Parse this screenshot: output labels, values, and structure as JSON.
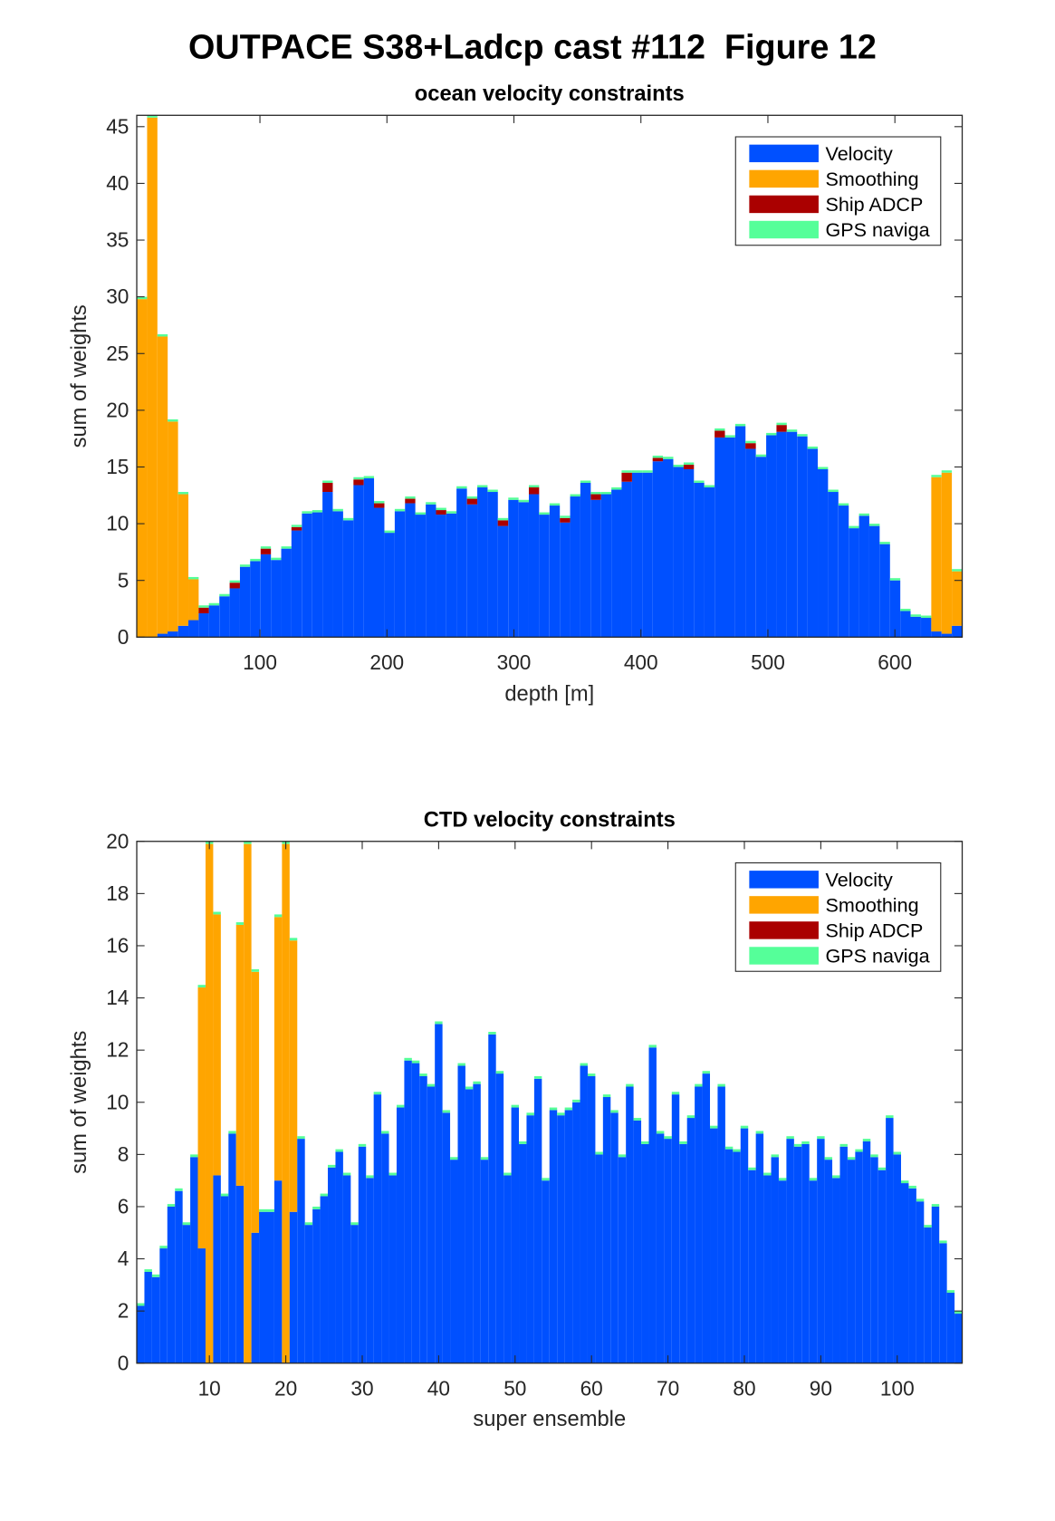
{
  "figure_title": "OUTPACE S38+Ladcp cast #112  Figure 12",
  "chart_data": [
    {
      "type": "bar",
      "stacked": true,
      "title": "ocean velocity constraints",
      "xlabel": "depth [m]",
      "ylabel": "sum of weights",
      "xlim": [
        3,
        653
      ],
      "ylim": [
        0,
        46
      ],
      "xticks": [
        100,
        200,
        300,
        400,
        500,
        600
      ],
      "yticks": [
        0,
        5,
        10,
        15,
        20,
        25,
        30,
        35,
        40,
        45
      ],
      "legend": "upper right",
      "x": [
        7.1,
        15.2,
        23.3,
        31.4,
        39.6,
        47.7,
        55.8,
        63.9,
        72.1,
        80.2,
        88.3,
        96.4,
        104.6,
        112.7,
        120.8,
        128.9,
        137.1,
        145.2,
        153.3,
        161.4,
        169.6,
        177.7,
        185.8,
        193.9,
        202.1,
        210.2,
        218.3,
        226.4,
        234.6,
        242.7,
        250.8,
        258.9,
        267.1,
        275.2,
        283.3,
        291.4,
        299.6,
        307.7,
        315.8,
        323.9,
        332.1,
        340.2,
        348.3,
        356.4,
        364.6,
        372.7,
        380.8,
        388.9,
        397.1,
        405.2,
        413.3,
        421.4,
        429.6,
        437.7,
        445.8,
        453.9,
        462.1,
        470.2,
        478.3,
        486.4,
        494.6,
        502.7,
        510.8,
        518.9,
        527.1,
        535.2,
        543.3,
        551.4,
        559.6,
        567.7,
        575.8,
        583.9,
        592.1,
        600.2,
        608.3,
        616.4,
        624.6,
        632.7,
        640.8,
        648.9
      ],
      "series": [
        {
          "name": "Velocity",
          "color": "#0050ff",
          "values": [
            0,
            0,
            0.3,
            0.5,
            1,
            1.5,
            2.1,
            2.8,
            3.6,
            4.3,
            6.2,
            6.7,
            7.3,
            6.8,
            7.8,
            9.4,
            10.9,
            11.0,
            12.8,
            11.1,
            10.3,
            13.4,
            14.0,
            11.4,
            9.2,
            11.1,
            11.8,
            10.8,
            11.7,
            10.8,
            10.9,
            13.1,
            11.7,
            13.2,
            12.8,
            9.8,
            12.1,
            11.9,
            12.6,
            10.8,
            11.6,
            10.1,
            12.4,
            13.6,
            12.1,
            12.6,
            13.0,
            13.7,
            14.5,
            14.5,
            15.5,
            15.7,
            15.0,
            14.8,
            13.6,
            13.2,
            17.6,
            17.6,
            18.6,
            16.6,
            15.9,
            17.8,
            18.1,
            18.1,
            17.7,
            16.6,
            14.8,
            12.8,
            11.6,
            9.6,
            10.7,
            9.8,
            8.2,
            5.0,
            2.3,
            1.8,
            1.7,
            0.5,
            0.3,
            1.0
          ]
        },
        {
          "name": "Smoothing",
          "color": "#ffa500",
          "values": [
            29.8,
            45.8,
            26.2,
            18.5,
            11.6,
            3.6,
            0,
            0,
            0,
            0,
            0,
            0,
            0,
            0,
            0,
            0,
            0,
            0,
            0,
            0,
            0,
            0,
            0,
            0,
            0,
            0,
            0,
            0,
            0,
            0,
            0,
            0,
            0,
            0,
            0,
            0,
            0,
            0,
            0,
            0,
            0,
            0,
            0,
            0,
            0,
            0,
            0,
            0,
            0,
            0,
            0,
            0,
            0,
            0,
            0,
            0,
            0,
            0,
            0,
            0,
            0,
            0,
            0,
            0,
            0,
            0,
            0,
            0,
            0,
            0,
            0,
            0,
            0,
            0,
            0,
            0,
            0,
            13.6,
            14.2,
            4.8
          ]
        },
        {
          "name": "Ship ADCP",
          "color": "#aa0000",
          "values": [
            0,
            0,
            0,
            0,
            0,
            0,
            0.5,
            0,
            0,
            0.5,
            0,
            0,
            0.5,
            0,
            0,
            0.3,
            0,
            0,
            0.8,
            0,
            0,
            0.5,
            0,
            0.4,
            0,
            0,
            0.4,
            0,
            0,
            0.4,
            0,
            0,
            0.5,
            0,
            0,
            0.5,
            0,
            0,
            0.6,
            0,
            0,
            0.4,
            0,
            0,
            0.5,
            0,
            0,
            0.8,
            0,
            0,
            0.3,
            0,
            0,
            0.4,
            0,
            0,
            0.6,
            0,
            0,
            0.5,
            0,
            0,
            0.6,
            0,
            0,
            0,
            0,
            0,
            0,
            0,
            0,
            0,
            0,
            0,
            0,
            0,
            0,
            0,
            0,
            0
          ]
        },
        {
          "name": "GPS naviga",
          "color": "#55ff99",
          "values": [
            0.2,
            0.2,
            0.2,
            0.2,
            0.2,
            0.2,
            0.2,
            0.2,
            0.2,
            0.2,
            0.2,
            0.2,
            0.2,
            0.2,
            0.2,
            0.2,
            0.2,
            0.2,
            0.2,
            0.2,
            0.2,
            0.2,
            0.2,
            0.2,
            0.2,
            0.2,
            0.2,
            0.2,
            0.2,
            0.2,
            0.2,
            0.2,
            0.2,
            0.2,
            0.2,
            0.2,
            0.2,
            0.2,
            0.2,
            0.2,
            0.2,
            0.2,
            0.2,
            0.2,
            0.2,
            0.2,
            0.2,
            0.2,
            0.2,
            0.2,
            0.2,
            0.2,
            0.2,
            0.2,
            0.2,
            0.2,
            0.2,
            0.2,
            0.2,
            0.2,
            0.2,
            0.2,
            0.2,
            0.2,
            0.2,
            0.2,
            0.2,
            0.2,
            0.2,
            0.2,
            0.2,
            0.2,
            0.2,
            0.2,
            0.2,
            0.2,
            0.2,
            0.2,
            0.2,
            0.2
          ]
        }
      ]
    },
    {
      "type": "bar",
      "stacked": true,
      "title": "CTD velocity constraints",
      "xlabel": "super ensemble",
      "ylabel": "sum of weights",
      "xlim": [
        0.5,
        108.5
      ],
      "ylim": [
        0,
        20
      ],
      "xticks": [
        10,
        20,
        30,
        40,
        50,
        60,
        70,
        80,
        90,
        100
      ],
      "yticks": [
        0,
        2,
        4,
        6,
        8,
        10,
        12,
        14,
        16,
        18,
        20
      ],
      "legend": "upper right",
      "x": [
        1,
        2,
        3,
        4,
        5,
        6,
        7,
        8,
        9,
        10,
        11,
        12,
        13,
        14,
        15,
        16,
        17,
        18,
        19,
        20,
        21,
        22,
        23,
        24,
        25,
        26,
        27,
        28,
        29,
        30,
        31,
        32,
        33,
        34,
        35,
        36,
        37,
        38,
        39,
        40,
        41,
        42,
        43,
        44,
        45,
        46,
        47,
        48,
        49,
        50,
        51,
        52,
        53,
        54,
        55,
        56,
        57,
        58,
        59,
        60,
        61,
        62,
        63,
        64,
        65,
        66,
        67,
        68,
        69,
        70,
        71,
        72,
        73,
        74,
        75,
        76,
        77,
        78,
        79,
        80,
        81,
        82,
        83,
        84,
        85,
        86,
        87,
        88,
        89,
        90,
        91,
        92,
        93,
        94,
        95,
        96,
        97,
        98,
        99,
        100,
        101,
        102,
        103,
        104,
        105,
        106,
        107,
        108
      ],
      "series": [
        {
          "name": "Velocity",
          "color": "#0050ff",
          "values": [
            2.2,
            3.5,
            3.3,
            4.4,
            6,
            6.6,
            5.3,
            7.9,
            4.4,
            0,
            7.2,
            6.4,
            8.8,
            6.8,
            0,
            5,
            5.8,
            5.8,
            7,
            0,
            5.8,
            8.6,
            5.3,
            5.9,
            6.4,
            7.5,
            8.1,
            7.2,
            5.3,
            8.3,
            7.1,
            10.3,
            8.8,
            7.2,
            9.8,
            11.6,
            11.5,
            11,
            10.6,
            13,
            9.6,
            7.8,
            11.4,
            10.5,
            10.7,
            7.8,
            12.6,
            11.1,
            7.2,
            9.8,
            8.4,
            9.5,
            10.9,
            7,
            9.7,
            9.5,
            9.7,
            10,
            11.4,
            11,
            8,
            10.2,
            9.6,
            7.9,
            10.6,
            9.3,
            8.4,
            12.1,
            8.8,
            8.6,
            10.3,
            8.4,
            9.4,
            10.6,
            11.1,
            9,
            10.6,
            8.2,
            8.1,
            9,
            7.4,
            8.8,
            7.2,
            7.9,
            7,
            8.6,
            8.3,
            8.4,
            7,
            8.6,
            7.8,
            7.1,
            8.3,
            7.8,
            8.1,
            8.5,
            7.9,
            7.4,
            9.4,
            8,
            6.9,
            6.7,
            6.2,
            5.2,
            6,
            4.6,
            2.7,
            1.9
          ]
        },
        {
          "name": "Smoothing",
          "color": "#ffa500",
          "values": [
            0,
            0,
            0,
            0,
            0,
            0,
            0,
            0,
            10,
            19.9,
            10,
            0,
            0,
            10,
            19.9,
            10,
            0,
            0,
            10.1,
            19.9,
            10.4,
            0,
            0,
            0,
            0,
            0,
            0,
            0,
            0,
            0,
            0,
            0,
            0,
            0,
            0,
            0,
            0,
            0,
            0,
            0,
            0,
            0,
            0,
            0,
            0,
            0,
            0,
            0,
            0,
            0,
            0,
            0,
            0,
            0,
            0,
            0,
            0,
            0,
            0,
            0,
            0,
            0,
            0,
            0,
            0,
            0,
            0,
            0,
            0,
            0,
            0,
            0,
            0,
            0,
            0,
            0,
            0,
            0,
            0,
            0,
            0,
            0,
            0,
            0,
            0,
            0,
            0,
            0,
            0,
            0,
            0,
            0,
            0,
            0,
            0,
            0,
            0,
            0,
            0,
            0,
            0,
            0,
            0,
            0,
            0,
            0,
            0,
            0
          ]
        },
        {
          "name": "Ship ADCP",
          "color": "#aa0000",
          "values": [
            0,
            0,
            0,
            0,
            0,
            0,
            0,
            0,
            0,
            0,
            0,
            0,
            0,
            0,
            0,
            0,
            0,
            0,
            0,
            0,
            0,
            0,
            0,
            0,
            0,
            0,
            0,
            0,
            0,
            0,
            0,
            0,
            0,
            0,
            0,
            0,
            0,
            0,
            0,
            0,
            0,
            0,
            0,
            0,
            0,
            0,
            0,
            0,
            0,
            0,
            0,
            0,
            0,
            0,
            0,
            0,
            0,
            0,
            0,
            0,
            0,
            0,
            0,
            0,
            0,
            0,
            0,
            0,
            0,
            0,
            0,
            0,
            0,
            0,
            0,
            0,
            0,
            0,
            0,
            0,
            0,
            0,
            0,
            0,
            0,
            0,
            0,
            0,
            0,
            0,
            0,
            0,
            0,
            0,
            0,
            0,
            0,
            0,
            0,
            0,
            0,
            0,
            0,
            0,
            0,
            0,
            0,
            0
          ]
        },
        {
          "name": "GPS naviga",
          "color": "#55ff99",
          "values": [
            0.1,
            0.1,
            0.1,
            0.1,
            0.1,
            0.1,
            0.1,
            0.1,
            0.1,
            0.1,
            0.1,
            0.1,
            0.1,
            0.1,
            0.1,
            0.1,
            0.1,
            0.1,
            0.1,
            0.1,
            0.1,
            0.1,
            0.1,
            0.1,
            0.1,
            0.1,
            0.1,
            0.1,
            0.1,
            0.1,
            0.1,
            0.1,
            0.1,
            0.1,
            0.1,
            0.1,
            0.1,
            0.1,
            0.1,
            0.1,
            0.1,
            0.1,
            0.1,
            0.1,
            0.1,
            0.1,
            0.1,
            0.1,
            0.1,
            0.1,
            0.1,
            0.1,
            0.1,
            0.1,
            0.1,
            0.1,
            0.1,
            0.1,
            0.1,
            0.1,
            0.1,
            0.1,
            0.1,
            0.1,
            0.1,
            0.1,
            0.1,
            0.1,
            0.1,
            0.1,
            0.1,
            0.1,
            0.1,
            0.1,
            0.1,
            0.1,
            0.1,
            0.1,
            0.1,
            0.1,
            0.1,
            0.1,
            0.1,
            0.1,
            0.1,
            0.1,
            0.1,
            0.1,
            0.1,
            0.1,
            0.1,
            0.1,
            0.1,
            0.1,
            0.1,
            0.1,
            0.1,
            0.1,
            0.1,
            0.1,
            0.1,
            0.1,
            0.1,
            0.1,
            0.1,
            0.1,
            0.1,
            0.1
          ]
        }
      ]
    }
  ]
}
